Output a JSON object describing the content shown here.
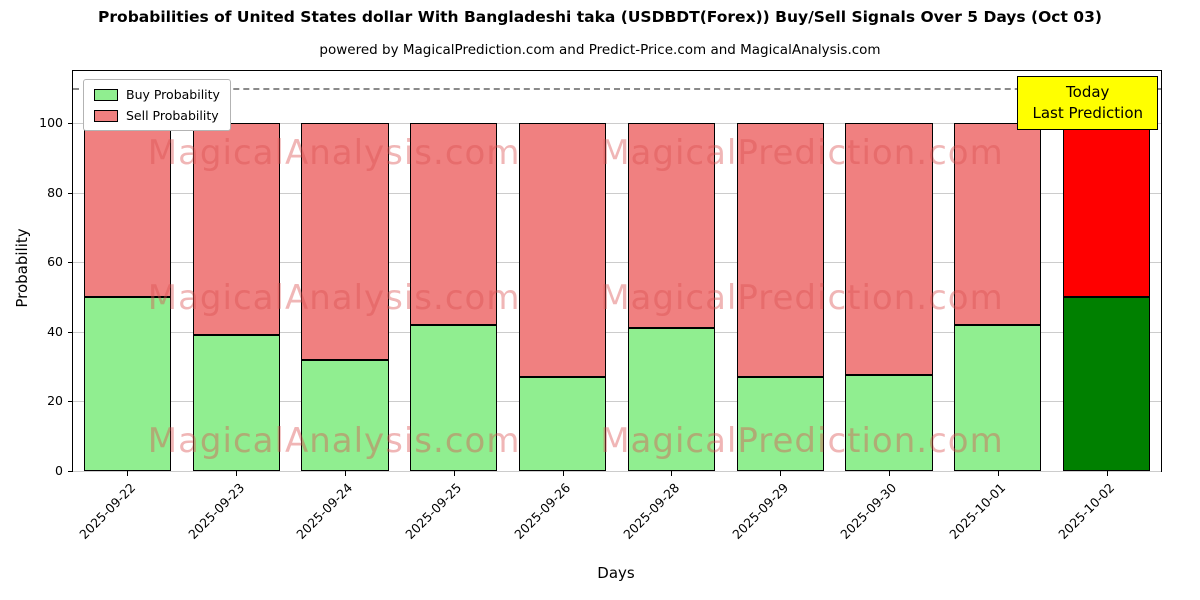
{
  "chart_data": {
    "type": "bar",
    "stacked": true,
    "title": "Probabilities of United States dollar With Bangladeshi taka (USDBDT(Forex)) Buy/Sell Signals Over 5 Days (Oct 03)",
    "subtitle": "powered by MagicalPrediction.com and Predict-Price.com and MagicalAnalysis.com",
    "xlabel": "Days",
    "ylabel": "Probability",
    "ylim": [
      0,
      115
    ],
    "yticks": [
      0,
      20,
      40,
      60,
      80,
      100
    ],
    "grid": true,
    "legend_position": "upper-left",
    "categories": [
      "2025-09-22",
      "2025-09-23",
      "2025-09-24",
      "2025-09-25",
      "2025-09-26",
      "2025-09-28",
      "2025-09-29",
      "2025-09-30",
      "2025-10-01",
      "2025-10-02"
    ],
    "series": [
      {
        "name": "Buy Probability",
        "color": "#90ee90",
        "last_bar_color": "#008000",
        "values": [
          50,
          39,
          32,
          42,
          27,
          41,
          27,
          27.5,
          42,
          50
        ]
      },
      {
        "name": "Sell Probability",
        "color": "#f08080",
        "last_bar_color": "#ff0000",
        "values": [
          50,
          61,
          68,
          58,
          73,
          59,
          73,
          72.5,
          58,
          50
        ]
      }
    ],
    "dashed_line_y": 110,
    "annotation": {
      "lines": [
        "Today",
        "Last Prediction"
      ],
      "bg": "#ffff00"
    },
    "watermarks": [
      {
        "text": "MagicalAnalysis.com",
        "x": 0.24,
        "y": 0.205
      },
      {
        "text": "MagicalPrediction.com",
        "x": 0.67,
        "y": 0.205
      },
      {
        "text": "MagicalAnalysis.com",
        "x": 0.24,
        "y": 0.5675
      },
      {
        "text": "MagicalPrediction.com",
        "x": 0.67,
        "y": 0.5675
      },
      {
        "text": "MagicalAnalysis.com",
        "x": 0.24,
        "y": 0.925
      },
      {
        "text": "MagicalPrediction.com",
        "x": 0.67,
        "y": 0.925
      }
    ]
  }
}
